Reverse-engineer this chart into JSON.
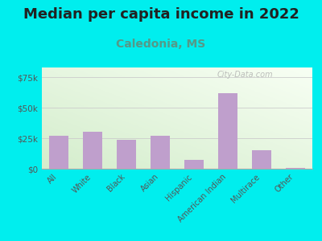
{
  "title": "Median per capita income in 2022",
  "subtitle": "Caledonia, MS",
  "categories": [
    "All",
    "White",
    "Black",
    "Asian",
    "Hispanic",
    "American Indian",
    "Multirace",
    "Other"
  ],
  "values": [
    27000,
    30000,
    24000,
    27000,
    7000,
    62000,
    15000,
    500
  ],
  "bar_color": "#bf9fcc",
  "background_outer": "#00eeee",
  "background_inner_topleft": "#d4edcc",
  "background_inner_bottomright": "#f8fff4",
  "title_color": "#222222",
  "subtitle_color": "#559988",
  "ytick_labels": [
    "$0",
    "$25k",
    "$50k",
    "$75k"
  ],
  "ytick_values": [
    0,
    25000,
    50000,
    75000
  ],
  "ylim": [
    0,
    83000
  ],
  "watermark": "City-Data.com",
  "title_fontsize": 13,
  "subtitle_fontsize": 10,
  "tick_label_color": "#555555",
  "grid_color": "#cccccc"
}
